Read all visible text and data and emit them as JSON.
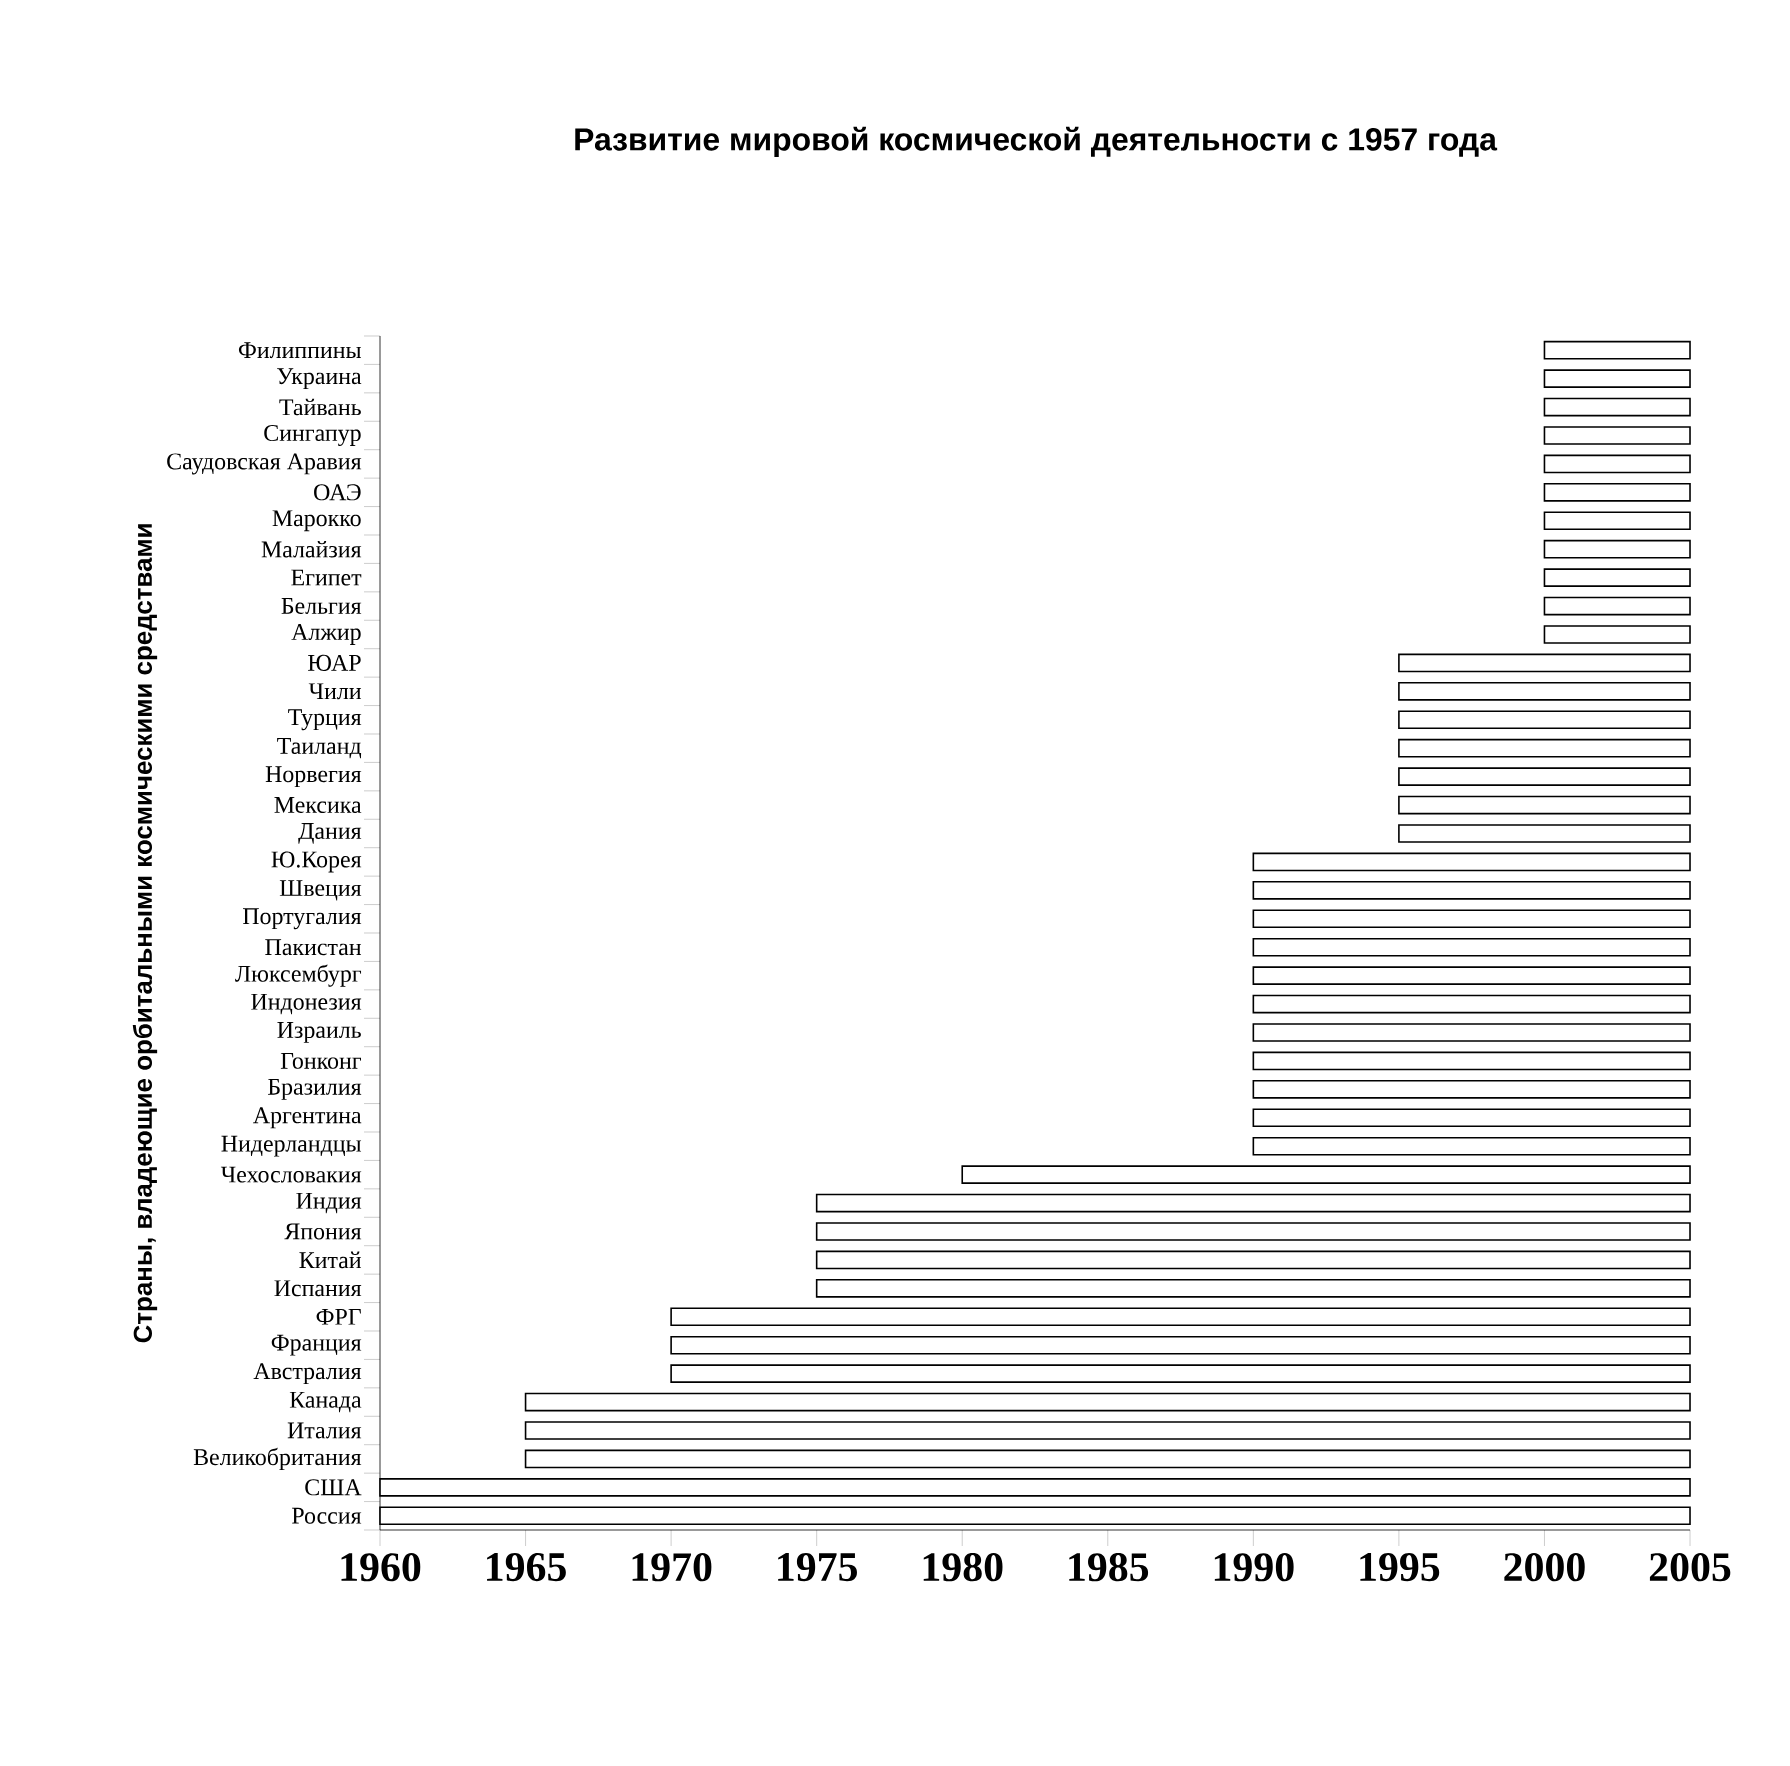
{
  "chart_data": {
    "type": "bar",
    "orientation": "horizontal",
    "title": "Развитие мировой космической деятельности с 1957 года",
    "ylabel": "Страны, владеющие орбитальными космическими средствами",
    "categories": [
      "Филиппины",
      "Украина",
      "Тайвань",
      "Сингапур",
      "Саудовская Аравия",
      "ОАЭ",
      "Марокко",
      "Малайзия",
      "Египет",
      "Бельгия",
      "Алжир",
      "ЮАР",
      "Чили",
      "Турция",
      "Таиланд",
      "Норвегия",
      "Мексика",
      "Дания",
      "Ю.Корея",
      "Швеция",
      "Португалия",
      "Пакистан",
      "Люксембург",
      "Индонезия",
      "Израиль",
      "Гонконг",
      "Бразилия",
      "Аргентина",
      "Нидерландцы",
      "Чехословакия",
      "Индия",
      "Япония",
      "Китай",
      "Испания",
      "ФРГ",
      "Франция",
      "Австралия",
      "Канада",
      "Италия",
      "Великобритания",
      "США",
      "Россия"
    ],
    "base": [
      2000,
      2000,
      2000,
      2000,
      2000,
      2000,
      2000,
      2000,
      2000,
      2000,
      2000,
      1995,
      1995,
      1995,
      1995,
      1995,
      1995,
      1995,
      1990,
      1990,
      1990,
      1990,
      1990,
      1990,
      1990,
      1990,
      1990,
      1990,
      1990,
      1980,
      1975,
      1975,
      1975,
      1975,
      1970,
      1970,
      1970,
      1965,
      1965,
      1965,
      1960,
      1960
    ],
    "values": [
      5,
      5,
      5,
      5,
      5,
      5,
      5,
      5,
      5,
      5,
      5,
      10,
      10,
      10,
      10,
      10,
      10,
      10,
      15,
      15,
      15,
      15,
      15,
      15,
      15,
      15,
      15,
      15,
      15,
      25,
      30,
      30,
      30,
      30,
      35,
      35,
      35,
      40,
      40,
      40,
      45,
      45
    ],
    "color": "#ffffff",
    "xlim": [
      1960,
      2005
    ],
    "xticks": [
      1960,
      1965,
      1970,
      1975,
      1980,
      1985,
      1990,
      1995,
      2000,
      2005
    ]
  }
}
